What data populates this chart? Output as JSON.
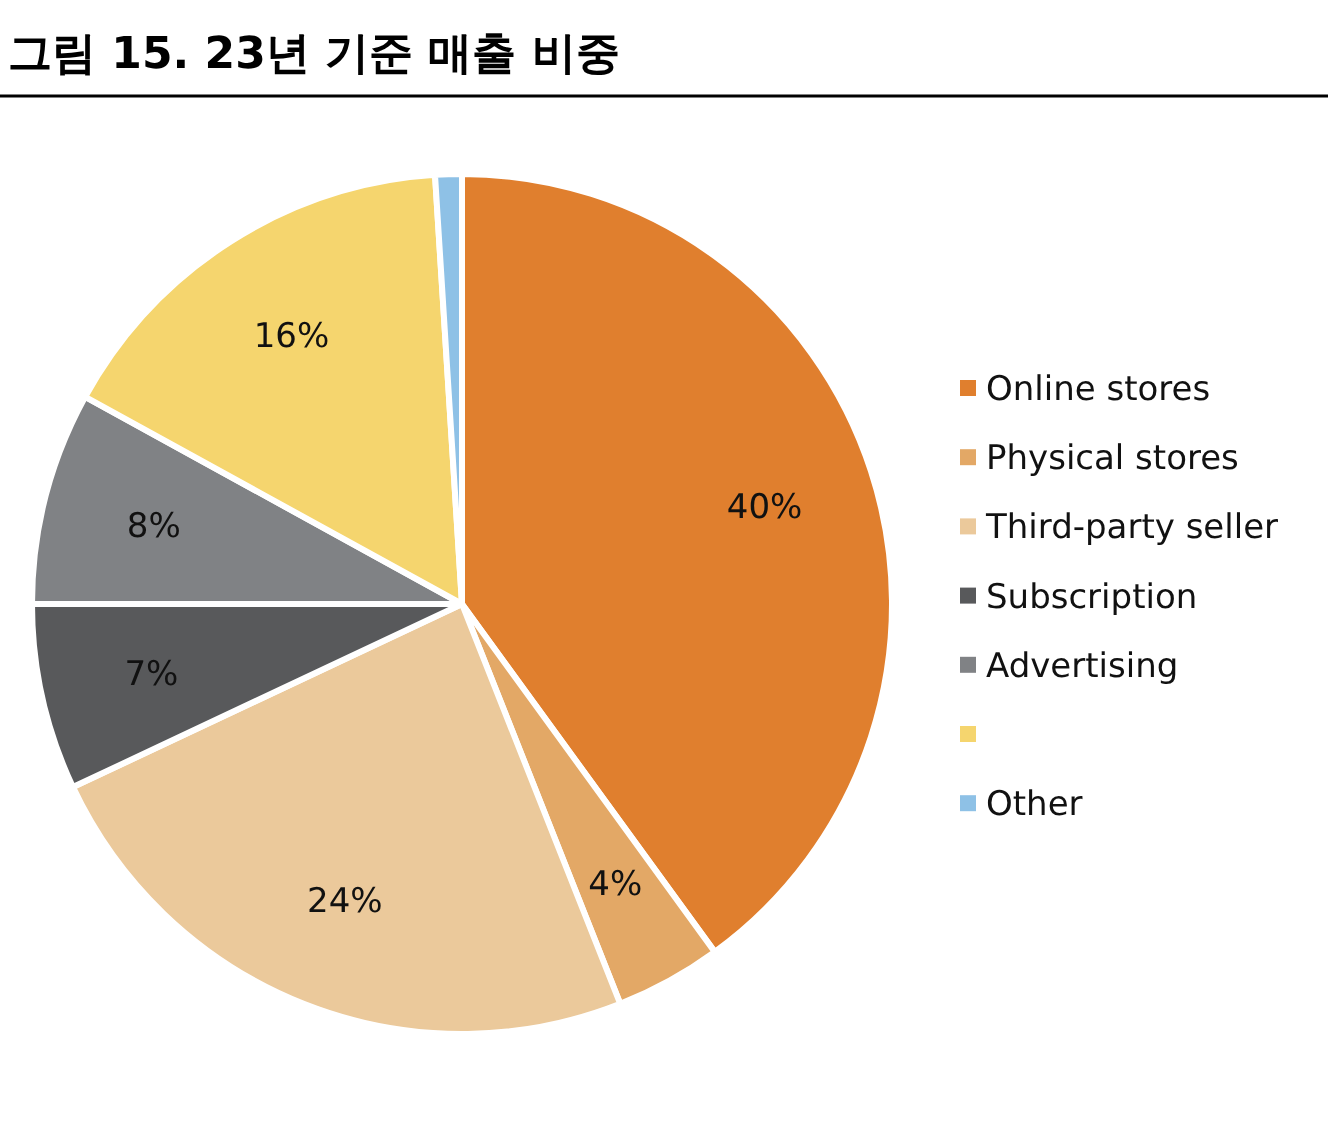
{
  "chart_data": {
    "type": "pie",
    "title": "그림 15. 23년 기준 매출 비중",
    "categories": [
      "Online stores",
      "Physical stores",
      "Third-party seller",
      "Subscription",
      "Advertising",
      null,
      "Other"
    ],
    "values": [
      40,
      4,
      24,
      7,
      8,
      16,
      1
    ],
    "value_labels": [
      "40%",
      "4%",
      "24%",
      "7%",
      "8%",
      "16%",
      null
    ],
    "colors": [
      "#e07f2e",
      "#e3a866",
      "#ebc99b",
      "#58595b",
      "#808285",
      "#f5d56e",
      "#8ec1e6"
    ],
    "legend": "right"
  }
}
